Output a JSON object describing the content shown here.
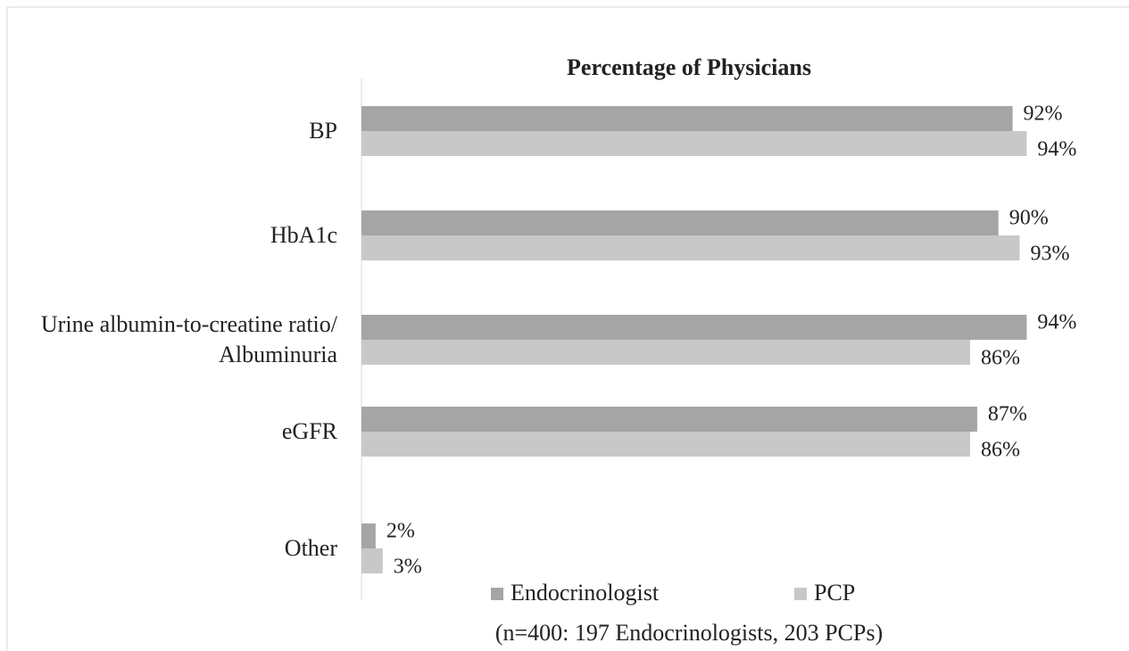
{
  "chart_data": {
    "type": "bar",
    "orientation": "horizontal",
    "title": "Percentage of Physicians",
    "categories": [
      "BP",
      "HbA1c",
      "Urine albumin-to-creatine ratio/ Albuminuria",
      "eGFR",
      "Other"
    ],
    "series": [
      {
        "name": "Endocrinologist",
        "color": "#a5a5a5",
        "values": [
          92,
          90,
          94,
          87,
          2
        ],
        "value_labels": [
          "92%",
          "90%",
          "94%",
          "87%",
          "2%"
        ]
      },
      {
        "name": "PCP",
        "color": "#c8c8c8",
        "values": [
          94,
          93,
          86,
          86,
          3
        ],
        "value_labels": [
          "94%",
          "93%",
          "86%",
          "86%",
          "3%"
        ]
      }
    ],
    "note": "(n=400: 197 Endocrinologists, 203 PCPs)"
  }
}
